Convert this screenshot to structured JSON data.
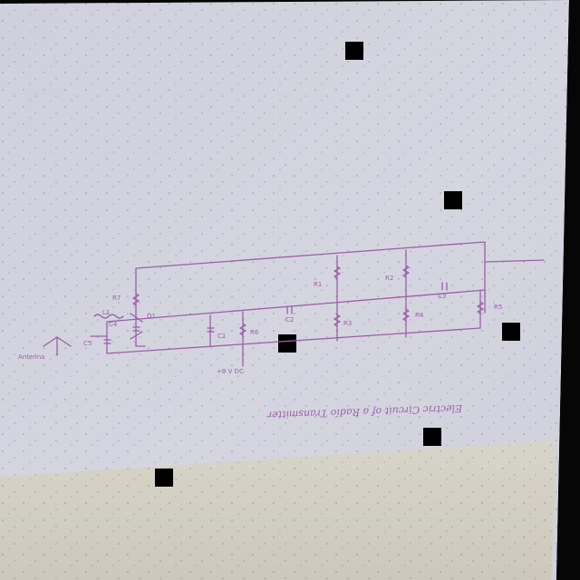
{
  "sheet": {
    "paper_color": "#d2d2de",
    "lower_paper_color": "#d6d3c6",
    "ink_color": "#9b5fa8"
  },
  "diagram": {
    "caption": "Electric Circuit of a Radio Transmitter",
    "antenna_label": "Antenna",
    "labels": {
      "r1": "R1",
      "r2": "R2",
      "r3": "R3",
      "r4": "R4",
      "r5": "R5",
      "r6": "R6",
      "r7": "R7",
      "c1": "C1",
      "c2": "C2",
      "c3": "C3",
      "c4": "C4",
      "c5": "C5",
      "l1": "L1",
      "q1": "Q1",
      "supply": "+9 V DC"
    }
  }
}
